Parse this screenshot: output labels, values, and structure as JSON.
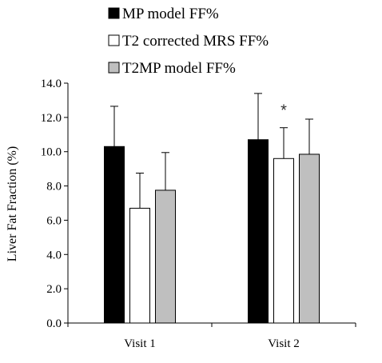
{
  "chart_data": {
    "type": "bar",
    "title": "",
    "xlabel": "",
    "ylabel": "Liver Fat Fraction (%)",
    "ylim": [
      0,
      14
    ],
    "y_ticks": [
      "0.0",
      "2.0",
      "4.0",
      "6.0",
      "8.0",
      "10.0",
      "12.0",
      "14.0"
    ],
    "categories": [
      "Visit 1",
      "Visit 2"
    ],
    "legend_position": "top",
    "series": [
      {
        "name": "MP model FF%",
        "color": "#000000",
        "values": [
          10.3,
          10.7
        ],
        "error": [
          2.35,
          2.7
        ]
      },
      {
        "name": "T2 corrected MRS FF%",
        "color": "#ffffff",
        "values": [
          6.7,
          9.6
        ],
        "error": [
          2.05,
          1.8
        ]
      },
      {
        "name": "T2MP model FF%",
        "color": "#bfbfbf",
        "values": [
          7.75,
          9.85
        ],
        "error": [
          2.2,
          2.05
        ]
      }
    ],
    "annotations": [
      {
        "text": "*",
        "category": "Visit 2",
        "series": "T2 corrected MRS FF%"
      }
    ]
  }
}
